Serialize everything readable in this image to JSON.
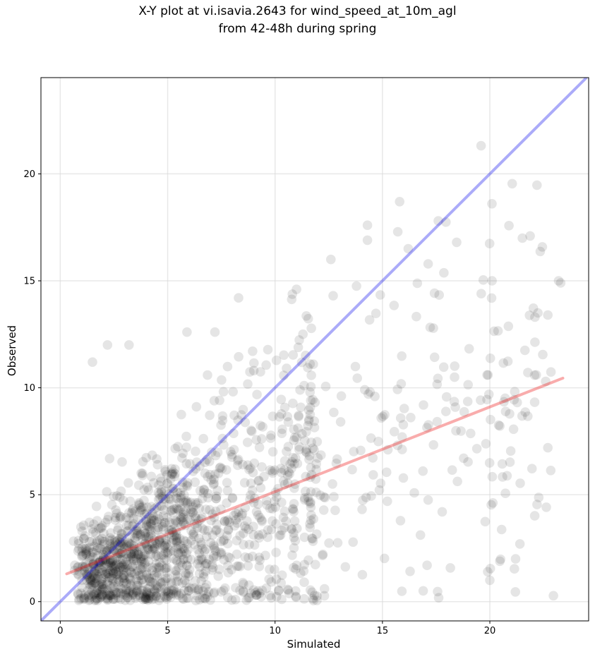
{
  "chart_data": {
    "type": "scatter",
    "title_lines": [
      "X-Y plot at vi.isavia.2643 for wind_speed_at_10m_agl",
      "from 42-48h during spring"
    ],
    "xlabel": "Simulated",
    "ylabel": "Observed",
    "xlim": [
      -0.9,
      24.6
    ],
    "ylim": [
      -0.9,
      24.5
    ],
    "xticks": [
      0,
      5,
      10,
      15,
      20
    ],
    "yticks": [
      0,
      5,
      10,
      15,
      20
    ],
    "grid": true,
    "points_color": "#000000",
    "points_alpha": 0.1,
    "identity_line": {
      "color": "#0000ee",
      "alpha": 0.33
    },
    "fit_line": {
      "x": [
        0.3,
        23.4
      ],
      "y": [
        1.3,
        10.45
      ],
      "color": "#ee1111",
      "alpha": 0.35
    },
    "points_summary": {
      "n_approx": 1500,
      "notable": [
        [
          15.8,
          18.7
        ],
        [
          14.3,
          17.6
        ],
        [
          17.6,
          17.8
        ],
        [
          14.3,
          16.9
        ],
        [
          16.2,
          16.5
        ],
        [
          12.6,
          16.0
        ],
        [
          11.0,
          14.6
        ],
        [
          8.3,
          14.2
        ],
        [
          23.3,
          14.9
        ],
        [
          23.2,
          15.0
        ],
        [
          22.1,
          13.3
        ],
        [
          22.7,
          13.4
        ],
        [
          20.1,
          15.0
        ],
        [
          19.6,
          14.4
        ],
        [
          5.9,
          12.6
        ],
        [
          7.2,
          12.6
        ],
        [
          2.2,
          12.0
        ],
        [
          3.2,
          12.0
        ],
        [
          1.5,
          11.2
        ],
        [
          22.6,
          10.3
        ],
        [
          21.2,
          2.0
        ],
        [
          21.4,
          2.7
        ],
        [
          19.9,
          1.4
        ],
        [
          20.0,
          1.0
        ],
        [
          12.3,
          0.6
        ],
        [
          8.8,
          0.2
        ]
      ]
    }
  }
}
